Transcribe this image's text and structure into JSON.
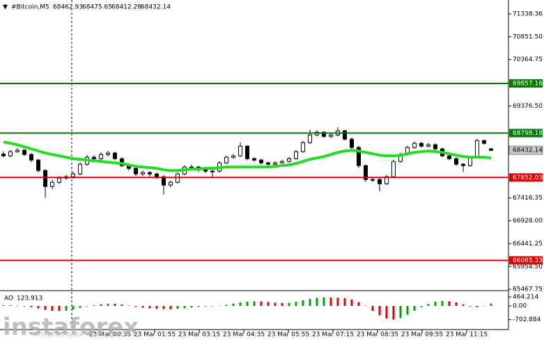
{
  "chart_data": {
    "type": "candlestick",
    "title": "#Bitcoin,M5",
    "up_color": "#ffffff",
    "down_color": "#000000",
    "ohlc": [
      [
        68350,
        68410,
        68280,
        68313
      ],
      [
        68313,
        68440,
        68290,
        68402
      ],
      [
        68402,
        68480,
        68380,
        68432
      ],
      [
        68432,
        68460,
        68310,
        68342
      ],
      [
        68342,
        68370,
        68180,
        68224
      ],
      [
        68224,
        68250,
        67960,
        68001
      ],
      [
        68001,
        68030,
        67420,
        67660
      ],
      [
        67660,
        67800,
        67600,
        67749
      ],
      [
        67749,
        67880,
        67710,
        67838
      ],
      [
        67838,
        67910,
        67800,
        67868
      ],
      [
        67868,
        67970,
        67830,
        67927
      ],
      [
        67927,
        68170,
        67900,
        68135
      ],
      [
        68135,
        68330,
        68100,
        68283
      ],
      [
        68283,
        68330,
        68210,
        68253
      ],
      [
        68253,
        68390,
        68220,
        68342
      ],
      [
        68342,
        68420,
        68300,
        68372
      ],
      [
        68372,
        68400,
        68220,
        68253
      ],
      [
        68253,
        68280,
        68070,
        68105
      ],
      [
        68105,
        68140,
        68000,
        68046
      ],
      [
        68046,
        68070,
        67880,
        67927
      ],
      [
        67927,
        68000,
        67880,
        67957
      ],
      [
        67957,
        67990,
        67870,
        67927
      ],
      [
        67927,
        67960,
        67820,
        67868
      ],
      [
        67868,
        67900,
        67490,
        67690
      ],
      [
        67690,
        67790,
        67640,
        67749
      ],
      [
        67749,
        67960,
        67720,
        67927
      ],
      [
        67927,
        68110,
        67900,
        68075
      ],
      [
        68075,
        68120,
        68030,
        68075
      ],
      [
        68075,
        68100,
        67970,
        68016
      ],
      [
        68016,
        68050,
        67940,
        67987
      ],
      [
        67987,
        68030,
        67840,
        67987
      ],
      [
        67987,
        68200,
        67960,
        68164
      ],
      [
        68164,
        68320,
        68140,
        68283
      ],
      [
        68283,
        68350,
        68250,
        68313
      ],
      [
        68313,
        68600,
        68290,
        68520
      ],
      [
        68520,
        68540,
        68220,
        68253
      ],
      [
        68253,
        68280,
        68190,
        68224
      ],
      [
        68224,
        68250,
        68130,
        68164
      ],
      [
        68164,
        68190,
        68100,
        68135
      ],
      [
        68135,
        68200,
        68110,
        68164
      ],
      [
        68164,
        68230,
        68150,
        68194
      ],
      [
        68194,
        68290,
        68170,
        68253
      ],
      [
        68253,
        68440,
        68230,
        68402
      ],
      [
        68402,
        68630,
        68380,
        68595
      ],
      [
        68595,
        68870,
        68570,
        68758
      ],
      [
        68758,
        68860,
        68730,
        68817
      ],
      [
        68817,
        68840,
        68700,
        68728
      ],
      [
        68728,
        68790,
        68690,
        68758
      ],
      [
        68758,
        68920,
        68730,
        68847
      ],
      [
        68847,
        68870,
        68640,
        68669
      ],
      [
        68669,
        68700,
        68460,
        68491
      ],
      [
        68491,
        68520,
        68060,
        68105
      ],
      [
        68105,
        68130,
        67760,
        67808
      ],
      [
        67808,
        67860,
        67760,
        67808
      ],
      [
        67808,
        67840,
        67560,
        67719
      ],
      [
        67719,
        67900,
        67690,
        67868
      ],
      [
        67868,
        68230,
        67840,
        68194
      ],
      [
        68194,
        68380,
        68170,
        68342
      ],
      [
        68342,
        68530,
        68320,
        68491
      ],
      [
        68491,
        68620,
        68460,
        68580
      ],
      [
        68580,
        68610,
        68490,
        68520
      ],
      [
        68520,
        68590,
        68490,
        68550
      ],
      [
        68550,
        68580,
        68430,
        68461
      ],
      [
        68461,
        68490,
        68290,
        68313
      ],
      [
        68313,
        68340,
        68220,
        68253
      ],
      [
        68253,
        68280,
        68100,
        68135
      ],
      [
        68135,
        68160,
        67970,
        68105
      ],
      [
        68105,
        68310,
        68080,
        68283
      ],
      [
        68283,
        68680,
        68260,
        68639
      ],
      [
        68639,
        68660,
        68550,
        68580
      ],
      [
        68462.93,
        68475.65,
        68412.28,
        68432.14
      ]
    ],
    "ma": {
      "color": "#22dd22",
      "values": [
        68609,
        68580,
        68550,
        68505,
        68461,
        68417,
        68372,
        68342,
        68313,
        68283,
        68253,
        68239,
        68224,
        68209,
        68194,
        68179,
        68164,
        68150,
        68120,
        68090,
        68075,
        68061,
        68046,
        68016,
        68001,
        68001,
        68016,
        68031,
        68031,
        68046,
        68046,
        68061,
        68075,
        68075,
        68075,
        68075,
        68075,
        68075,
        68075,
        68090,
        68105,
        68120,
        68150,
        68194,
        68239,
        68268,
        68298,
        68342,
        68387,
        68417,
        68431,
        68417,
        68387,
        68357,
        68327,
        68313,
        68313,
        68327,
        68357,
        68387,
        68402,
        68417,
        68402,
        68387,
        68357,
        68327,
        68298,
        68283,
        68283,
        68283,
        68268
      ]
    },
    "levels": [
      {
        "value": 69857.16,
        "color": "#007a00"
      },
      {
        "value": 68798.18,
        "color": "#007a00"
      },
      {
        "value": 67852.03,
        "color": "#e00000"
      },
      {
        "value": 66085.33,
        "color": "#e00000"
      }
    ],
    "ylim": [
      65440,
      71635
    ],
    "yticks": [
      71338.36,
      {
        "value": 70851.5,
        "label": "70851.50"
      },
      70364.75,
      {
        "value": 69376.5,
        "label": "69376.50"
      },
      67416.35,
      {
        "value": 66928,
        "label": "66928.00"
      },
      66441.25,
      {
        "value": 65954.5,
        "label": "65954.50"
      },
      65467.75
    ],
    "xticks": [
      "23 Mar 00:35",
      "23 Mar 01:55",
      "23 Mar 03:15",
      "23 Mar 04:35",
      "23 Mar 05:55",
      "23 Mar 07:15",
      "23 Mar 08:35",
      "23 Mar 09:55",
      "23 Mar 11:15"
    ],
    "ao": {
      "label": "AO",
      "up_color": "#00a000",
      "down_color": "#e00000",
      "values": [
        40,
        30,
        10,
        -20,
        -60,
        -120,
        -200,
        -250,
        -260,
        -240,
        -180,
        -100,
        -20,
        40,
        90,
        120,
        110,
        70,
        20,
        -40,
        -90,
        -120,
        -140,
        -160,
        -170,
        -150,
        -120,
        -80,
        -50,
        -30,
        -20,
        10,
        60,
        120,
        180,
        220,
        240,
        230,
        200,
        170,
        150,
        160,
        210,
        290,
        360,
        410,
        440,
        430,
        420,
        400,
        330,
        200,
        20,
        -250,
        -480,
        -650,
        -700,
        -620,
        -450,
        -250,
        -60,
        100,
        220,
        260,
        240,
        180,
        80,
        -30,
        -60,
        10,
        123.913
      ],
      "ylim": [
        -1070,
        680
      ],
      "yticks": [
        464.214,
        {
          "value": 0,
          "label": "0.00"
        },
        -702.884
      ]
    },
    "watermark": {
      "title": "instaforex",
      "subtitle": "Instant Forex Trading"
    }
  }
}
